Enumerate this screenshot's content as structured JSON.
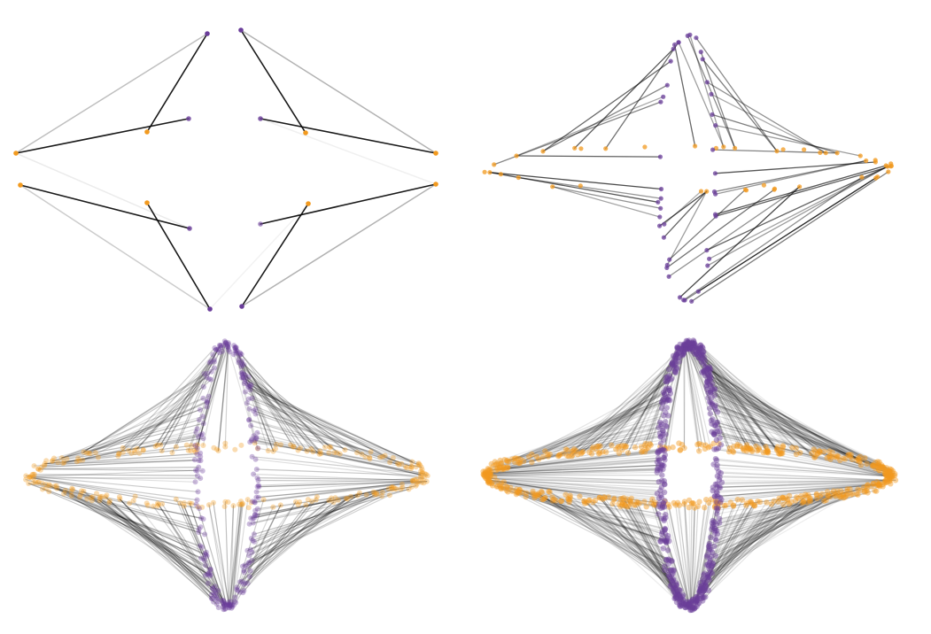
{
  "figure": {
    "description_kind": "bipartite-matching-network-panels",
    "colors": {
      "background": "#ffffff",
      "edge": "#000000",
      "node_purple": "#6a3d9a",
      "node_orange": "#f29a1f"
    },
    "panels": [
      {
        "id": "top-left",
        "edges_per_node": 1,
        "edge_opacity": 0.9
      },
      {
        "id": "top-right",
        "edges_per_node": 1,
        "edge_opacity": 0.6
      },
      {
        "id": "bottom-left",
        "edges_per_node": 1,
        "edge_opacity": 0.25
      },
      {
        "id": "bottom-right",
        "edges_per_node": 1,
        "edge_opacity": 0.15
      }
    ]
  }
}
